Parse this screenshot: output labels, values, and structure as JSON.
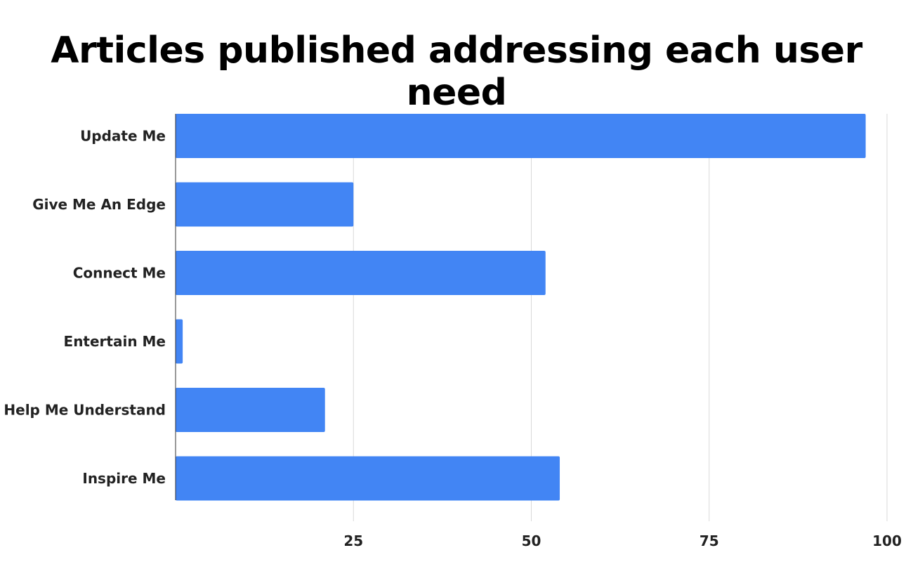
{
  "chart_data": {
    "type": "bar",
    "orientation": "horizontal",
    "title": "Articles published addressing each user need",
    "xlabel": "",
    "ylabel": "",
    "categories": [
      "Update Me",
      "Give Me An Edge",
      "Connect Me",
      "Entertain Me",
      "Help Me Understand",
      "Inspire Me"
    ],
    "values": [
      97,
      25,
      52,
      1,
      21,
      54
    ],
    "xlim": [
      0,
      100
    ],
    "xticks": [
      25,
      50,
      75,
      100
    ],
    "xtick_labels": [
      "25",
      "50",
      "75",
      "100"
    ],
    "grid": "vertical",
    "legend": "none",
    "colors": {
      "bar": "#4285f4",
      "grid": "#d9d9d9",
      "axis": "#333333"
    }
  }
}
